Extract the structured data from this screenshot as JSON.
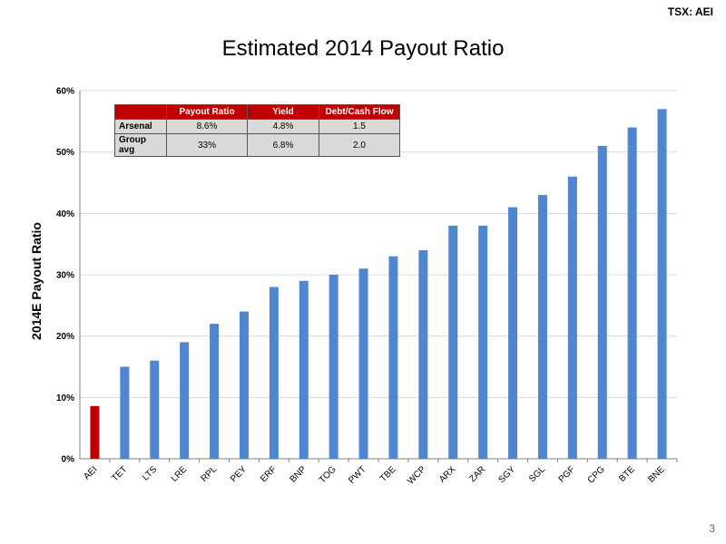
{
  "header": {
    "ticker_label": "TSX:",
    "ticker_value": "AEI"
  },
  "page_number": "3",
  "summary_table": {
    "headers": [
      "",
      "Payout Ratio",
      "Yield",
      "Debt/Cash Flow"
    ],
    "rows": [
      [
        "Arsenal",
        "8.6%",
        "4.8%",
        "1.5"
      ],
      [
        "Group avg",
        "33%",
        "6.8%",
        "2.0"
      ]
    ]
  },
  "chart_data": {
    "type": "bar",
    "title": "Estimated 2014 Payout Ratio",
    "xlabel": "",
    "ylabel": "2014E Payout Ratio",
    "ylim": [
      0,
      60
    ],
    "yticks": [
      "0%",
      "10%",
      "20%",
      "30%",
      "40%",
      "50%",
      "60%"
    ],
    "grid": true,
    "categories": [
      "AEI",
      "TET",
      "LTS",
      "LRE",
      "RPL",
      "PEY",
      "ERF",
      "BNP",
      "TOG",
      "PWT",
      "TBE",
      "WCP",
      "ARX",
      "ZAR",
      "SGY",
      "SGL",
      "PGF",
      "CPG",
      "BTE",
      "BNE"
    ],
    "values": [
      8.6,
      15,
      16,
      19,
      22,
      24,
      28,
      29,
      30,
      31,
      33,
      34,
      38,
      38,
      41,
      43,
      46,
      51,
      54,
      57
    ],
    "colors": {
      "highlight": "#c00000",
      "default": "#4f86d0",
      "grid": "#d9d9d9"
    },
    "highlight_category": "AEI"
  }
}
